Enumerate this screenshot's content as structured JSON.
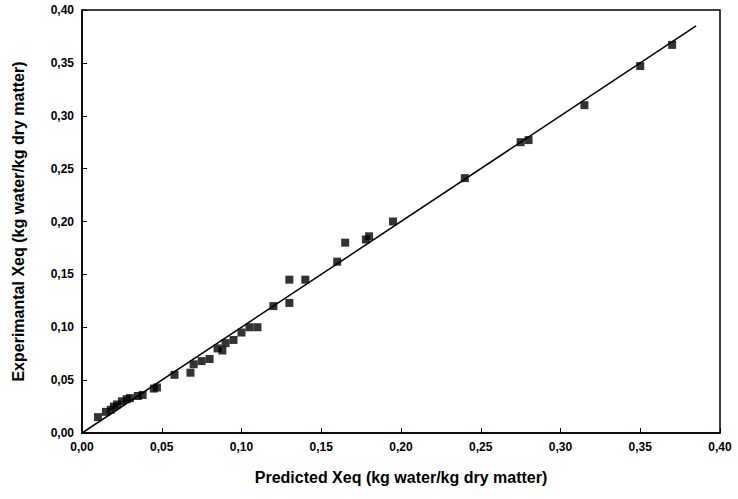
{
  "chart_data": {
    "type": "scatter",
    "x_label": "Predicted Xeq (kg water/kg dry matter)",
    "y_label": "Experimantal Xeq (kg water/kg dry matter)",
    "xlim": [
      0,
      0.4
    ],
    "ylim": [
      0,
      0.4
    ],
    "xticks": [
      {
        "value": 0,
        "label": "0,00"
      },
      {
        "value": 0.05,
        "label": "0,05"
      },
      {
        "value": 0.1,
        "label": "0,10"
      },
      {
        "value": 0.15,
        "label": "0,15"
      },
      {
        "value": 0.2,
        "label": "0,20"
      },
      {
        "value": 0.25,
        "label": "0,25"
      },
      {
        "value": 0.3,
        "label": "0,30"
      },
      {
        "value": 0.35,
        "label": "0,35"
      },
      {
        "value": 0.4,
        "label": "0,40"
      }
    ],
    "yticks": [
      {
        "value": 0,
        "label": "0,00"
      },
      {
        "value": 0.05,
        "label": "0,05"
      },
      {
        "value": 0.1,
        "label": "0,10"
      },
      {
        "value": 0.15,
        "label": "0,15"
      },
      {
        "value": 0.2,
        "label": "0,20"
      },
      {
        "value": 0.25,
        "label": "0,25"
      },
      {
        "value": 0.3,
        "label": "0,30"
      },
      {
        "value": 0.35,
        "label": "0,35"
      },
      {
        "value": 0.4,
        "label": "0,40"
      }
    ],
    "grid": false,
    "series": [
      {
        "type": "scatter",
        "color": "#000000",
        "marker": "square",
        "x": [
          0.01,
          0.015,
          0.018,
          0.02,
          0.022,
          0.025,
          0.028,
          0.03,
          0.035,
          0.038,
          0.045,
          0.047,
          0.058,
          0.068,
          0.07,
          0.075,
          0.08,
          0.085,
          0.088,
          0.09,
          0.095,
          0.1,
          0.105,
          0.11,
          0.12,
          0.13,
          0.13,
          0.14,
          0.16,
          0.165,
          0.178,
          0.18,
          0.195,
          0.24,
          0.275,
          0.28,
          0.315,
          0.35,
          0.37
        ],
        "values": [
          0.015,
          0.02,
          0.022,
          0.025,
          0.027,
          0.03,
          0.032,
          0.033,
          0.035,
          0.036,
          0.042,
          0.043,
          0.055,
          0.057,
          0.065,
          0.068,
          0.07,
          0.08,
          0.078,
          0.085,
          0.088,
          0.095,
          0.1,
          0.1,
          0.12,
          0.145,
          0.123,
          0.145,
          0.162,
          0.18,
          0.183,
          0.186,
          0.2,
          0.241,
          0.275,
          0.277,
          0.31,
          0.347,
          0.367
        ]
      },
      {
        "type": "line",
        "color": "#000000",
        "line_style": "solid",
        "x": [
          0,
          0.385
        ],
        "values": [
          0,
          0.385
        ]
      }
    ]
  }
}
